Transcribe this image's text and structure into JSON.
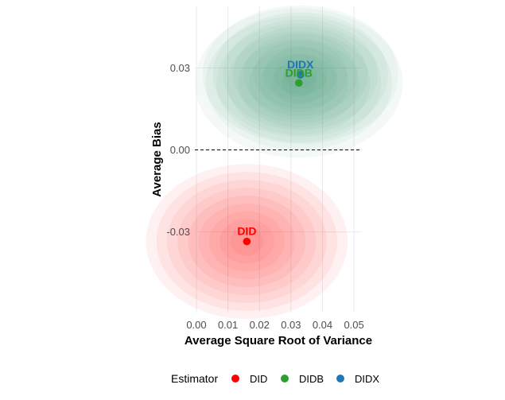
{
  "chart_data": {
    "type": "scatter",
    "xlabel": "Average Square Root of Variance",
    "ylabel": "Average Bias",
    "xlim": [
      -0.0005,
      0.0525
    ],
    "ylim": [
      -0.0595,
      0.0525
    ],
    "x_ticks": [
      "0.00",
      "0.01",
      "0.02",
      "0.03",
      "0.04",
      "0.05"
    ],
    "x_tick_values": [
      0.0,
      0.01,
      0.02,
      0.03,
      0.04,
      0.05
    ],
    "y_ticks": [
      "-0.03",
      "0.00",
      "0.03"
    ],
    "y_tick_values": [
      -0.03,
      0.0,
      0.03
    ],
    "grid": true,
    "reference_line": {
      "y": 0,
      "style": "dashed"
    },
    "legend": {
      "title": "Estimator",
      "placement": "bottom"
    },
    "series": [
      {
        "name": "DID",
        "color": "#ff0000",
        "x": 0.016,
        "y": -0.0335,
        "label": "DID",
        "spread": {
          "sx": 0.015,
          "sy": 0.013
        }
      },
      {
        "name": "DIDB",
        "color": "#2ca02c",
        "x": 0.0325,
        "y": 0.0245,
        "label": "DIDB",
        "spread": {
          "sx": 0.0155,
          "sy": 0.0125
        }
      },
      {
        "name": "DIDX",
        "color": "#1f77b4",
        "x": 0.033,
        "y": 0.0275,
        "label": "DIDX",
        "spread": {
          "sx": 0.0145,
          "sy": 0.0115
        }
      }
    ]
  }
}
